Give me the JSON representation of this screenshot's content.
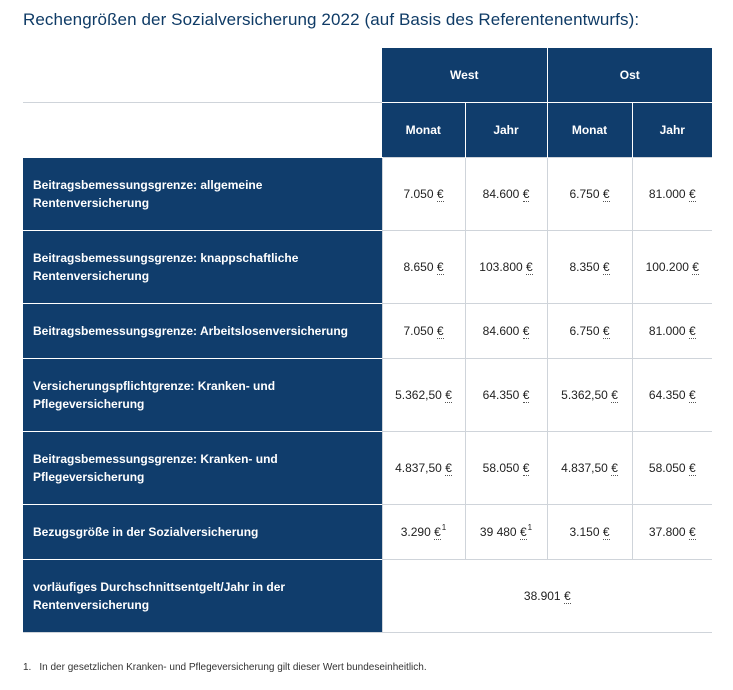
{
  "title": "Rechengrößen der Sozialversicherung 2022 (auf Basis des Referentenentwurfs):",
  "header": {
    "west": "West",
    "ost": "Ost",
    "monat": "Monat",
    "jahr": "Jahr"
  },
  "currency": "€",
  "rows": [
    {
      "label": "Beitragsbemessungsgrenze: allgemeine Rentenversicherung",
      "west_monat": "7.050",
      "west_jahr": "84.600",
      "ost_monat": "6.750",
      "ost_jahr": "81.000"
    },
    {
      "label": "Beitragsbemessungsgrenze: knappschaftliche Rentenversicherung",
      "west_monat": "8.650",
      "west_jahr": "103.800",
      "ost_monat": "8.350",
      "ost_jahr": "100.200"
    },
    {
      "label": "Beitragsbemessungsgrenze: Arbeitslosenversicherung",
      "west_monat": "7.050",
      "west_jahr": "84.600",
      "ost_monat": "6.750",
      "ost_jahr": "81.000"
    },
    {
      "label": "Versicherungspflichtgrenze: Kranken- und Pflegeversicherung",
      "west_monat": "5.362,50",
      "west_jahr": "64.350",
      "ost_monat": "5.362,50",
      "ost_jahr": "64.350"
    },
    {
      "label": "Beitragsbemessungsgrenze: Kranken- und Pflegeversicherung",
      "west_monat": "4.837,50",
      "west_jahr": "58.050",
      "ost_monat": "4.837,50",
      "ost_jahr": "58.050"
    },
    {
      "label": "Bezugsgröße in der Sozialversicherung",
      "west_monat": "3.290",
      "west_monat_sup": "1",
      "west_jahr": "39 480",
      "west_jahr_sup": "1",
      "ost_monat": "3.150",
      "ost_jahr": "37.800"
    }
  ],
  "last_row": {
    "label": "vorläufiges Durchschnittsentgelt/Jahr in der Rentenversicherung",
    "value": "38.901"
  },
  "footnote": {
    "number": "1.",
    "text": "In der gesetzlichen Kranken- und Pflegeversicherung gilt dieser Wert bundeseinheitlich."
  }
}
